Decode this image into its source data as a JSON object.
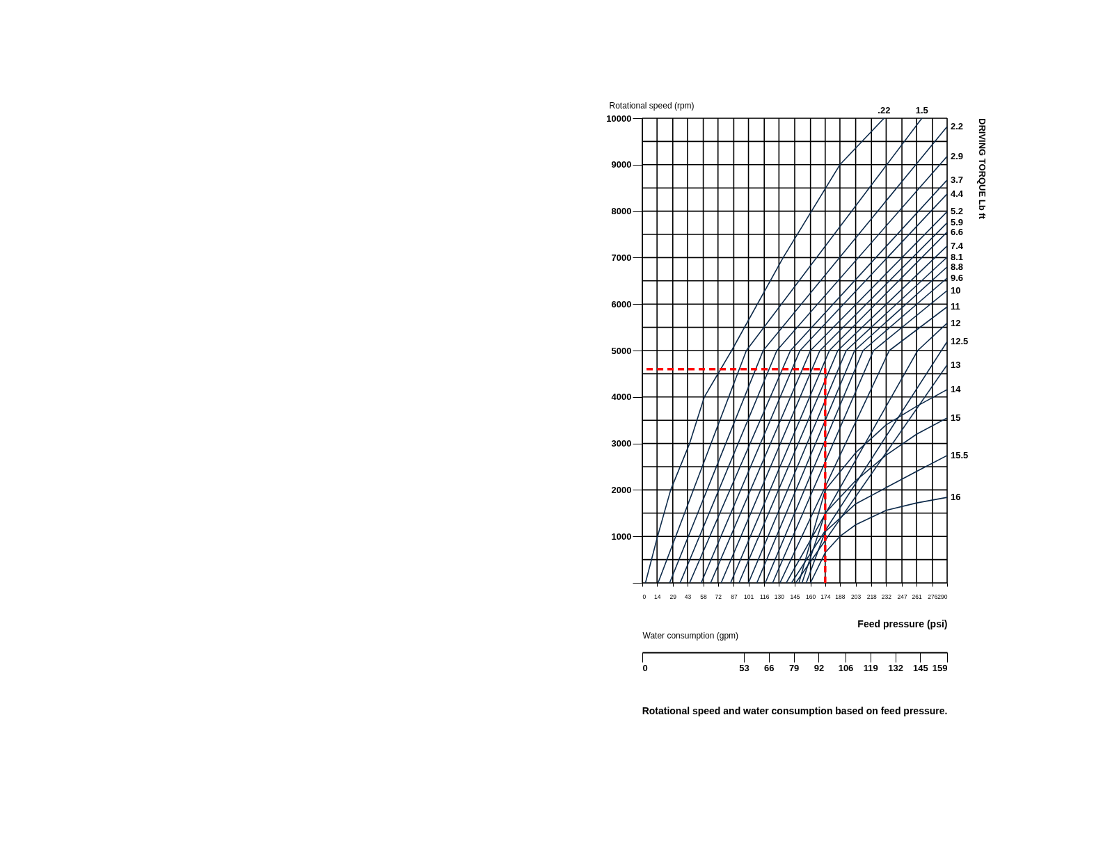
{
  "chart_data": {
    "type": "line",
    "ylabel": "Rotational speed (rpm)",
    "xlabel": "Feed pressure (psi)",
    "x2label": "Water consumption (gpm)",
    "y2label": "DRIVING TORQUE Lb ft",
    "annotations": [
      "Rotational speed and water consumption based on feed pressure."
    ],
    "xlim": [
      0,
      290
    ],
    "xticks": [
      0,
      14,
      29,
      43,
      58,
      72,
      87,
      101,
      116,
      130,
      145,
      160,
      174,
      188,
      203,
      218,
      232,
      247,
      261,
      276,
      290
    ],
    "ylim": [
      0,
      10000
    ],
    "yticks": [
      {
        "value": 0,
        "label": null
      },
      {
        "value": 500,
        "label": null
      },
      1000,
      {
        "value": 1500,
        "label": null
      },
      2000,
      {
        "value": 2500,
        "label": null
      },
      3000,
      {
        "value": 3500,
        "label": null
      },
      4000,
      {
        "value": 4500,
        "label": null
      },
      5000,
      {
        "value": 5500,
        "label": null
      },
      6000,
      {
        "value": 6500,
        "label": null
      },
      7000,
      {
        "value": 7500,
        "label": null
      },
      8000,
      {
        "value": 8500,
        "label": null
      },
      9000,
      {
        "value": 9500,
        "label": null
      },
      10000
    ],
    "x2lim": [
      0,
      159
    ],
    "x2ticks": [
      0,
      53,
      66,
      79,
      92,
      106,
      119,
      132,
      145,
      159
    ],
    "grid": true,
    "series": [
      {
        "name": ".22",
        "color": "#0d2a4a",
        "x": [
          3,
          14.5,
          27,
          45,
          59,
          85,
          134,
          188,
          230
        ],
        "values": [
          0,
          1000,
          2000,
          3000,
          4000,
          5000,
          7000,
          9000,
          10000
        ]
      },
      {
        "name": "1.5",
        "color": "#0d2a4a",
        "x": [
          15,
          99,
          266
        ],
        "values": [
          0,
          5000,
          10000
        ]
      },
      {
        "name": "2.2",
        "color": "#0d2a4a",
        "x": [
          26,
          115,
          290
        ],
        "values": [
          0,
          5000,
          9820
        ]
      },
      {
        "name": "2.9",
        "color": "#0d2a4a",
        "x": [
          36,
          128,
          290
        ],
        "values": [
          0,
          5000,
          9180
        ]
      },
      {
        "name": "3.7",
        "color": "#0d2a4a",
        "x": [
          45,
          141,
          290
        ],
        "values": [
          0,
          5000,
          8670
        ]
      },
      {
        "name": "4.4",
        "color": "#0d2a4a",
        "x": [
          56,
          150,
          290
        ],
        "values": [
          0,
          5000,
          8370
        ]
      },
      {
        "name": "5.2",
        "color": "#0d2a4a",
        "x": [
          65,
          160,
          290
        ],
        "values": [
          0,
          5000,
          7990
        ]
      },
      {
        "name": "5.9",
        "color": "#0d2a4a",
        "x": [
          75,
          169,
          290
        ],
        "values": [
          0,
          5000,
          7750
        ]
      },
      {
        "name": "6.6",
        "color": "#0d2a4a",
        "x": [
          84,
          178,
          290
        ],
        "values": [
          0,
          5000,
          7550
        ]
      },
      {
        "name": "7.4",
        "color": "#0d2a4a",
        "x": [
          92,
          186,
          290
        ],
        "values": [
          0,
          5000,
          7250
        ]
      },
      {
        "name": "8.1",
        "color": "#0d2a4a",
        "x": [
          101,
          194,
          290
        ],
        "values": [
          0,
          5000,
          7010
        ]
      },
      {
        "name": "8.8",
        "color": "#0d2a4a",
        "x": [
          109,
          202,
          290
        ],
        "values": [
          0,
          5000,
          6800
        ]
      },
      {
        "name": "9.6",
        "color": "#0d2a4a",
        "x": [
          117,
          210,
          290
        ],
        "values": [
          0,
          5000,
          6560
        ]
      },
      {
        "name": "10",
        "color": "#0d2a4a",
        "x": [
          124,
          220,
          290
        ],
        "values": [
          0,
          5000,
          6290
        ]
      },
      {
        "name": "11",
        "color": "#0d2a4a",
        "x": [
          131,
          235,
          290
        ],
        "values": [
          0,
          5000,
          5940
        ]
      },
      {
        "name": "12",
        "color": "#0d2a4a",
        "x": [
          137,
          262,
          290
        ],
        "values": [
          0,
          5000,
          5590
        ]
      },
      {
        "name": "12.5",
        "color": "#0d2a4a",
        "x": [
          142,
          290
        ],
        "values": [
          0,
          5190
        ]
      },
      {
        "name": "13",
        "color": "#0d2a4a",
        "x": [
          146,
          290
        ],
        "values": [
          0,
          4690
        ]
      },
      {
        "name": "14",
        "color": "#0d2a4a",
        "x": [
          149,
          174,
          203,
          232,
          261,
          290
        ],
        "values": [
          0,
          2000,
          2800,
          3400,
          3800,
          4160
        ]
      },
      {
        "name": "15",
        "color": "#0d2a4a",
        "x": [
          152,
          174,
          203,
          232,
          261,
          290
        ],
        "values": [
          0,
          1500,
          2200,
          2750,
          3200,
          3550
        ]
      },
      {
        "name": "15.5",
        "color": "#0d2a4a",
        "x": [
          156,
          174,
          203,
          232,
          261,
          290
        ],
        "values": [
          0,
          1100,
          1700,
          2050,
          2400,
          2740
        ]
      },
      {
        "name": "16",
        "color": "#0d2a4a",
        "x": [
          160,
          174,
          188,
          203,
          232,
          261,
          290
        ],
        "values": [
          0,
          650,
          1000,
          1250,
          1560,
          1720,
          1840
        ]
      },
      {
        "type": "line",
        "color": "#ff0000",
        "line_style": "dashed",
        "x": [
          174,
          174,
          0
        ],
        "values": [
          0,
          4600,
          4600
        ]
      }
    ]
  }
}
